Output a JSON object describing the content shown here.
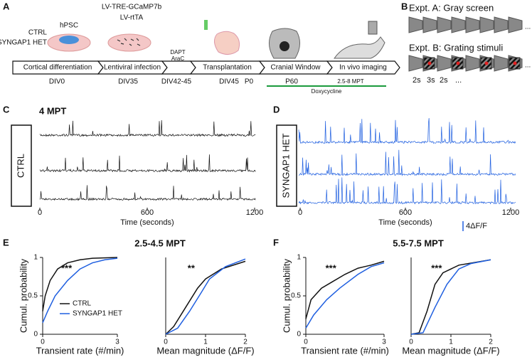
{
  "panel_labels": [
    "A",
    "B",
    "C",
    "D",
    "E",
    "F"
  ],
  "timeline": {
    "conditions": [
      "CTRL",
      "SYNGAP1 HET"
    ],
    "dish1_label": "hPSC",
    "virus": [
      "LV-TRE-GCaMP7b",
      "LV-rtTA"
    ],
    "stages": [
      "Cortical differentiation",
      "Lentiviral infection",
      "",
      "Transplantation",
      "Cranial Window",
      "In vivo imaging"
    ],
    "drug": [
      "DAPT",
      "AraC"
    ],
    "timepoints": [
      {
        "label": "DIV0",
        "color": "#e0401f"
      },
      {
        "label": "DIV35",
        "color": "#e0401f"
      },
      {
        "label": "DIV42-45",
        "color": "#e0401f"
      },
      {
        "label": "DIV45",
        "color": "#e0401f"
      },
      {
        "label": "P0",
        "color": "#111111"
      },
      {
        "label": "P60",
        "color": "#111111"
      },
      {
        "label": "2.5-8 MPT",
        "color": "#111111"
      }
    ],
    "treatment": {
      "label": "Doxycycline",
      "color": "#1a9a3c"
    }
  },
  "stimuli": {
    "expt_a": "Expt. A: Gray screen",
    "expt_b": "Expt. B: Grating stimuli",
    "ellipsis": "...",
    "durations": [
      "2s",
      "3s",
      "2s",
      "..."
    ]
  },
  "traces": {
    "time_label": "4 MPT",
    "ctrl_label": "CTRL",
    "het_label": "SYNGAP1 HET",
    "ctrl_color": "#111111",
    "het_color": "#1f5fe0",
    "xlim": [
      0,
      1200
    ],
    "xticks": [
      0,
      600,
      1200
    ],
    "x_label": "Time (seconds)",
    "scale_bar": "4ΔF/F"
  },
  "cdf_groups": [
    {
      "title": "2.5-4.5 MPT",
      "plots": [
        {
          "y_label": "Cumul. probability",
          "x_label": "Transient rate (#/min)",
          "stars": "***",
          "xlim": [
            0,
            3
          ],
          "ylim": [
            0,
            1
          ],
          "xticks": [
            0,
            3
          ],
          "yticks": [
            0,
            0.5,
            1
          ],
          "series": [
            {
              "name": "CTRL",
              "color": "#111111",
              "x": [
                0,
                0.1,
                0.3,
                0.6,
                1,
                1.5,
                2,
                3
              ],
              "y": [
                0.3,
                0.5,
                0.7,
                0.85,
                0.93,
                0.97,
                0.99,
                1
              ]
            },
            {
              "name": "SYNGAP1 HET",
              "color": "#1f5fe0",
              "x": [
                0,
                0.2,
                0.5,
                1,
                1.5,
                2,
                2.5,
                3
              ],
              "y": [
                0.15,
                0.3,
                0.5,
                0.7,
                0.85,
                0.93,
                0.97,
                0.99
              ]
            }
          ]
        },
        {
          "x_label": "Mean magnitude (ΔF/F)",
          "stars": "**",
          "xlim": [
            0,
            2
          ],
          "ylim": [
            0,
            1
          ],
          "xticks": [
            0,
            1,
            2
          ],
          "series": [
            {
              "color": "#111111",
              "x": [
                0,
                0.2,
                0.5,
                0.8,
                1,
                1.4,
                2
              ],
              "y": [
                0,
                0.1,
                0.35,
                0.6,
                0.72,
                0.85,
                0.95
              ]
            },
            {
              "color": "#1f5fe0",
              "x": [
                0,
                0.3,
                0.6,
                0.9,
                1.1,
                1.5,
                2
              ],
              "y": [
                0,
                0.08,
                0.3,
                0.55,
                0.72,
                0.88,
                0.98
              ]
            }
          ]
        }
      ]
    },
    {
      "title": "5.5-7.5 MPT",
      "plots": [
        {
          "y_label": "Cumul. probability",
          "x_label": "Transient rate (#/min)",
          "stars": "***",
          "xlim": [
            0,
            3
          ],
          "ylim": [
            0,
            1
          ],
          "xticks": [
            0,
            3
          ],
          "yticks": [
            0,
            0.5,
            1
          ],
          "series": [
            {
              "color": "#111111",
              "x": [
                0,
                0.2,
                0.6,
                1,
                1.5,
                2,
                2.5,
                3
              ],
              "y": [
                0.2,
                0.45,
                0.6,
                0.68,
                0.78,
                0.86,
                0.9,
                0.95
              ]
            },
            {
              "color": "#1f5fe0",
              "x": [
                0,
                0.3,
                0.8,
                1.3,
                2,
                2.5,
                3
              ],
              "y": [
                0.08,
                0.25,
                0.45,
                0.6,
                0.78,
                0.88,
                0.93
              ]
            }
          ]
        },
        {
          "x_label": "Mean magnitude (ΔF/F)",
          "stars": "***",
          "xlim": [
            0,
            2
          ],
          "ylim": [
            0,
            1
          ],
          "xticks": [
            0,
            1,
            2
          ],
          "series": [
            {
              "color": "#111111",
              "x": [
                0,
                0.2,
                0.4,
                0.6,
                0.8,
                1.2,
                2
              ],
              "y": [
                0,
                0.02,
                0.3,
                0.65,
                0.8,
                0.9,
                0.97
              ]
            },
            {
              "color": "#1f5fe0",
              "x": [
                0,
                0.3,
                0.6,
                0.9,
                1.2,
                1.5,
                2
              ],
              "y": [
                0,
                0.02,
                0.35,
                0.65,
                0.85,
                0.92,
                0.97
              ]
            }
          ]
        }
      ]
    }
  ]
}
